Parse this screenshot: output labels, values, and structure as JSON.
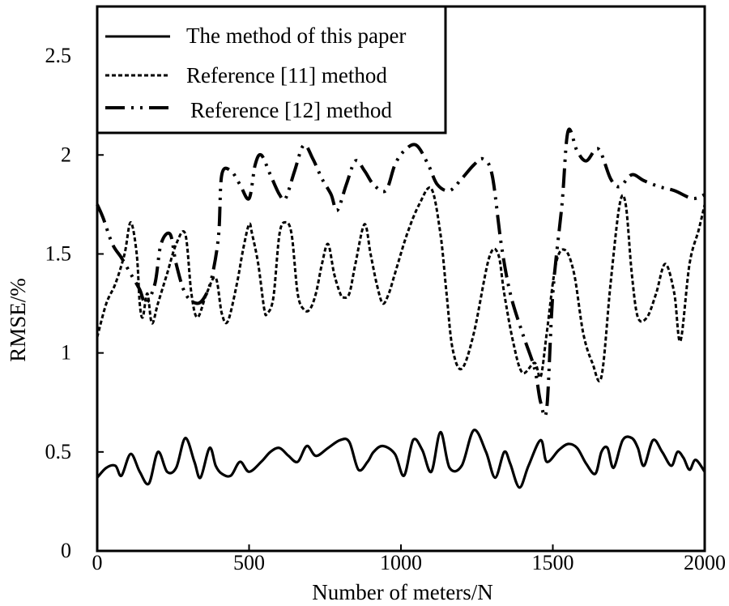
{
  "chart_data": {
    "type": "line",
    "title": "",
    "xlabel": "Number of meters/N",
    "ylabel": "RMSE/%",
    "xlim": [
      0,
      2000
    ],
    "ylim": [
      0,
      2.75
    ],
    "xticks": [
      0,
      500,
      1000,
      1500,
      2000
    ],
    "xtick_labels": [
      "0",
      "500",
      "1000",
      "1500",
      "2000"
    ],
    "yticks": [
      0,
      0.5,
      1,
      1.5,
      2,
      2.5
    ],
    "ytick_labels": [
      "0",
      "0.5",
      "1",
      "1.5",
      "2",
      "2.5"
    ],
    "grid": false,
    "legend_position": "top-left",
    "series": [
      {
        "name": "The method of this paper",
        "style": "solid",
        "color": "#000000",
        "x": [
          0,
          30,
          60,
          80,
          110,
          140,
          170,
          200,
          230,
          260,
          290,
          320,
          340,
          370,
          390,
          410,
          440,
          470,
          500,
          540,
          570,
          600,
          630,
          660,
          690,
          720,
          760,
          800,
          830,
          860,
          890,
          910,
          940,
          980,
          1010,
          1040,
          1070,
          1100,
          1130,
          1160,
          1200,
          1240,
          1280,
          1310,
          1340,
          1360,
          1390,
          1420,
          1460,
          1480,
          1520,
          1550,
          1580,
          1610,
          1640,
          1660,
          1680,
          1700,
          1730,
          1760,
          1780,
          1800,
          1830,
          1860,
          1890,
          1910,
          1930,
          1950,
          1970,
          2000
        ],
        "y": [
          0.37,
          0.42,
          0.43,
          0.38,
          0.49,
          0.4,
          0.34,
          0.5,
          0.4,
          0.42,
          0.57,
          0.45,
          0.37,
          0.52,
          0.43,
          0.39,
          0.38,
          0.45,
          0.4,
          0.45,
          0.5,
          0.52,
          0.48,
          0.45,
          0.53,
          0.48,
          0.52,
          0.56,
          0.55,
          0.41,
          0.45,
          0.5,
          0.53,
          0.49,
          0.38,
          0.56,
          0.51,
          0.4,
          0.6,
          0.42,
          0.43,
          0.61,
          0.5,
          0.37,
          0.5,
          0.44,
          0.32,
          0.43,
          0.56,
          0.45,
          0.51,
          0.54,
          0.52,
          0.44,
          0.39,
          0.5,
          0.52,
          0.42,
          0.56,
          0.57,
          0.52,
          0.43,
          0.56,
          0.5,
          0.43,
          0.5,
          0.47,
          0.41,
          0.46,
          0.4
        ]
      },
      {
        "name": "Reference [11] method",
        "style": "dotted",
        "color": "#000000",
        "x": [
          0,
          30,
          60,
          90,
          110,
          130,
          140,
          150,
          165,
          180,
          200,
          230,
          260,
          290,
          310,
          330,
          360,
          390,
          410,
          430,
          460,
          480,
          500,
          510,
          530,
          550,
          560,
          580,
          600,
          620,
          640,
          660,
          680,
          700,
          720,
          740,
          760,
          780,
          800,
          810,
          830,
          850,
          880,
          900,
          920,
          940,
          960,
          980,
          1020,
          1060,
          1100,
          1130,
          1150,
          1170,
          1200,
          1240,
          1290,
          1320,
          1340,
          1370,
          1400,
          1440,
          1460,
          1480,
          1510,
          1540,
          1570,
          1600,
          1630,
          1660,
          1690,
          1720,
          1740,
          1760,
          1780,
          1810,
          1840,
          1870,
          1900,
          1920,
          1950,
          1980,
          2000
        ],
        "y": [
          1.08,
          1.25,
          1.35,
          1.5,
          1.66,
          1.5,
          1.25,
          1.18,
          1.3,
          1.15,
          1.25,
          1.4,
          1.55,
          1.6,
          1.3,
          1.18,
          1.3,
          1.38,
          1.2,
          1.16,
          1.35,
          1.52,
          1.65,
          1.6,
          1.45,
          1.22,
          1.2,
          1.28,
          1.6,
          1.66,
          1.6,
          1.3,
          1.22,
          1.22,
          1.3,
          1.45,
          1.55,
          1.4,
          1.3,
          1.28,
          1.3,
          1.45,
          1.65,
          1.5,
          1.35,
          1.25,
          1.3,
          1.4,
          1.6,
          1.75,
          1.83,
          1.6,
          1.3,
          1.02,
          0.92,
          1.1,
          1.48,
          1.5,
          1.3,
          1.05,
          0.9,
          0.95,
          0.88,
          1.1,
          1.45,
          1.52,
          1.4,
          1.1,
          0.95,
          0.88,
          1.35,
          1.75,
          1.75,
          1.4,
          1.18,
          1.18,
          1.3,
          1.45,
          1.3,
          1.06,
          1.45,
          1.62,
          1.75
        ]
      },
      {
        "name": "Reference [12] method",
        "style": "dash-dot",
        "color": "#000000",
        "x": [
          0,
          20,
          50,
          80,
          110,
          140,
          160,
          190,
          210,
          240,
          260,
          290,
          330,
          360,
          380,
          400,
          410,
          440,
          470,
          500,
          520,
          540,
          570,
          600,
          620,
          650,
          680,
          710,
          740,
          770,
          790,
          820,
          850,
          880,
          910,
          950,
          980,
          1010,
          1050,
          1090,
          1120,
          1160,
          1200,
          1240,
          1270,
          1300,
          1330,
          1360,
          1400,
          1440,
          1460,
          1480,
          1500,
          1530,
          1550,
          1580,
          1610,
          1650,
          1690,
          1720,
          1760,
          1800,
          1850,
          1900,
          1960,
          2000
        ],
        "y": [
          1.75,
          1.68,
          1.55,
          1.48,
          1.4,
          1.32,
          1.25,
          1.35,
          1.55,
          1.6,
          1.45,
          1.3,
          1.25,
          1.3,
          1.4,
          1.6,
          1.9,
          1.92,
          1.85,
          1.78,
          1.95,
          2.0,
          1.9,
          1.8,
          1.78,
          1.92,
          2.05,
          1.98,
          1.88,
          1.8,
          1.72,
          1.85,
          1.97,
          1.92,
          1.85,
          1.82,
          1.95,
          2.02,
          2.05,
          1.95,
          1.85,
          1.82,
          1.88,
          1.95,
          1.98,
          1.9,
          1.55,
          1.3,
          1.1,
          0.92,
          0.75,
          0.72,
          1.3,
          1.75,
          2.12,
          2.02,
          1.97,
          2.03,
          1.88,
          1.84,
          1.9,
          1.87,
          1.84,
          1.82,
          1.78,
          1.8
        ]
      }
    ]
  }
}
